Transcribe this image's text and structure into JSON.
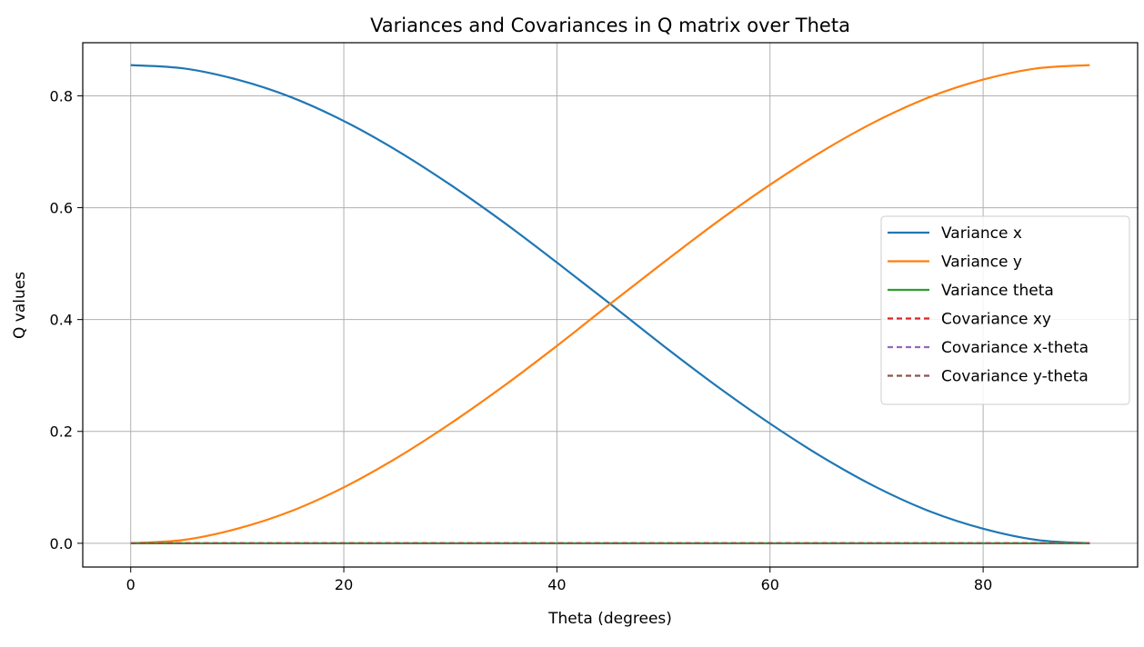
{
  "chart_data": {
    "type": "line",
    "title": "Variances and Covariances in Q matrix over Theta",
    "xlabel": "Theta (degrees)",
    "ylabel": "Q values",
    "xlim": [
      -4.5,
      94.5
    ],
    "ylim": [
      -0.0425,
      0.895
    ],
    "xticks": [
      0,
      20,
      40,
      60,
      80
    ],
    "yticks": [
      0.0,
      0.2,
      0.4,
      0.6,
      0.8
    ],
    "xtick_labels": [
      "0",
      "20",
      "40",
      "60",
      "80"
    ],
    "ytick_labels": [
      "0.0",
      "0.2",
      "0.4",
      "0.6",
      "0.8"
    ],
    "grid": true,
    "legend_position": "center-right",
    "x": [
      0,
      5,
      10,
      15,
      20,
      25,
      30,
      35,
      40,
      45,
      50,
      55,
      60,
      65,
      70,
      75,
      80,
      85,
      90
    ],
    "series": [
      {
        "name": "Variance x",
        "color": "#1f77b4",
        "style": "solid",
        "values": [
          0.855,
          0.849,
          0.829,
          0.798,
          0.755,
          0.702,
          0.641,
          0.574,
          0.502,
          0.428,
          0.353,
          0.281,
          0.214,
          0.153,
          0.1,
          0.057,
          0.026,
          0.006,
          0.0
        ]
      },
      {
        "name": "Variance y",
        "color": "#ff7f0e",
        "style": "solid",
        "values": [
          0.0,
          0.006,
          0.026,
          0.057,
          0.1,
          0.153,
          0.214,
          0.281,
          0.353,
          0.428,
          0.502,
          0.574,
          0.641,
          0.702,
          0.755,
          0.798,
          0.829,
          0.849,
          0.855
        ]
      },
      {
        "name": "Variance theta",
        "color": "#2ca02c",
        "style": "solid",
        "values": [
          0,
          0,
          0,
          0,
          0,
          0,
          0,
          0,
          0,
          0,
          0,
          0,
          0,
          0,
          0,
          0,
          0,
          0,
          0
        ]
      },
      {
        "name": "Covariance xy",
        "color": "#d62728",
        "style": "dashed",
        "values": [
          0,
          0,
          0,
          0,
          0,
          0,
          0,
          0,
          0,
          0,
          0,
          0,
          0,
          0,
          0,
          0,
          0,
          0,
          0
        ]
      },
      {
        "name": "Covariance x-theta",
        "color": "#9467bd",
        "style": "dashed",
        "values": [
          0,
          0,
          0,
          0,
          0,
          0,
          0,
          0,
          0,
          0,
          0,
          0,
          0,
          0,
          0,
          0,
          0,
          0,
          0
        ]
      },
      {
        "name": "Covariance y-theta",
        "color": "#8c564b",
        "style": "dashed",
        "values": [
          0,
          0,
          0,
          0,
          0,
          0,
          0,
          0,
          0,
          0,
          0,
          0,
          0,
          0,
          0,
          0,
          0,
          0,
          0
        ]
      }
    ]
  }
}
